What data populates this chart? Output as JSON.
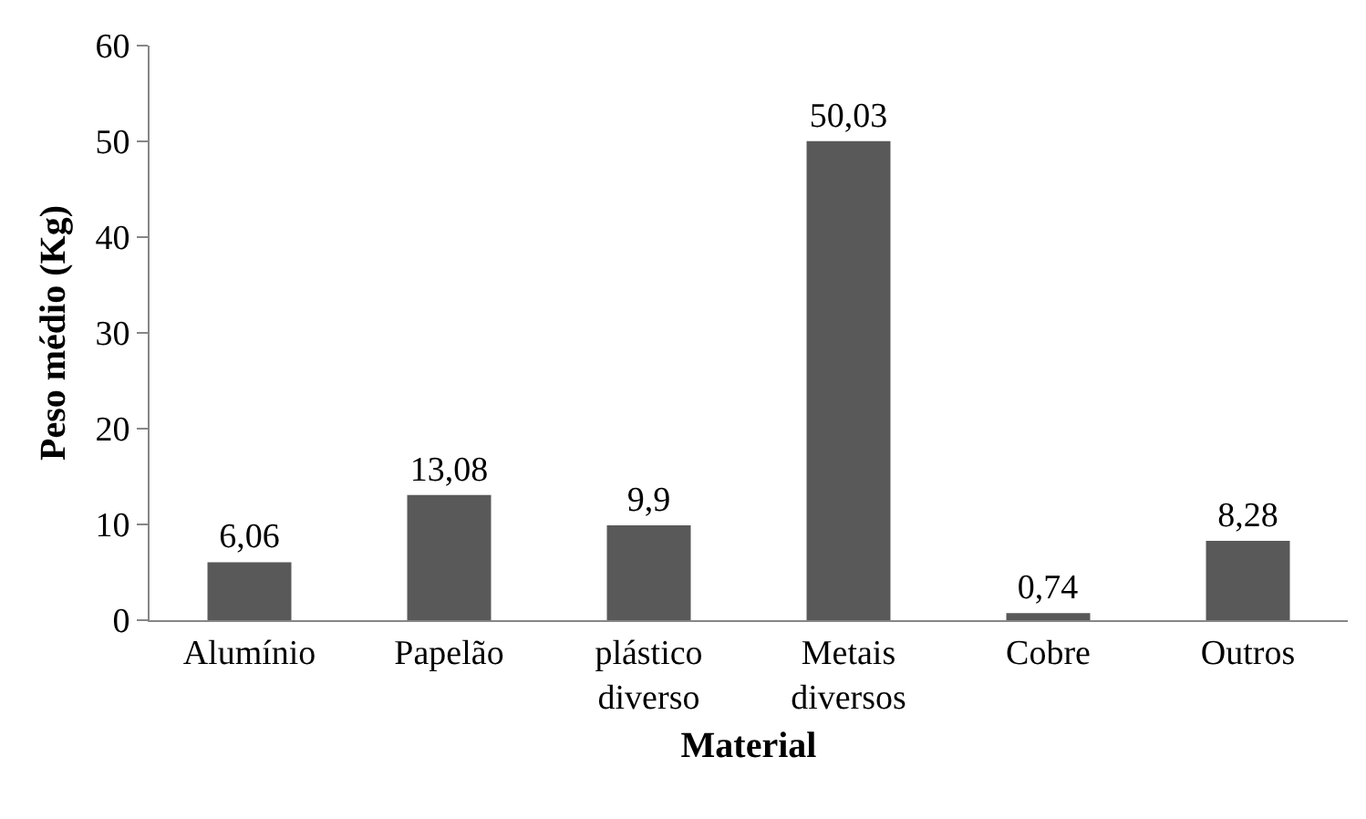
{
  "chart_data": {
    "type": "bar",
    "xlabel": "Material",
    "ylabel": "Peso médio (Kg)",
    "categories": [
      "Alumínio",
      "Papelão",
      "plástico diverso",
      "Metais diversos",
      "Cobre",
      "Outros"
    ],
    "values": [
      6.06,
      13.08,
      9.9,
      50.03,
      0.74,
      8.28
    ],
    "value_labels": [
      "6,06",
      "13,08",
      "9,9",
      "50,03",
      "0,74",
      "8,28"
    ],
    "color": "#595959",
    "ylim": [
      0,
      60
    ],
    "yticks": [
      0,
      10,
      20,
      30,
      40,
      50,
      60
    ],
    "grid": false,
    "legend": false
  }
}
